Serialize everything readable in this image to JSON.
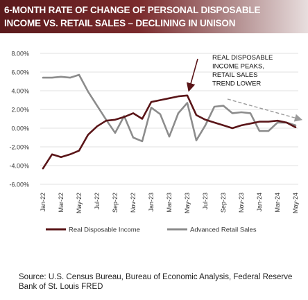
{
  "title": {
    "line1": "6-MONTH RATE OF CHANGE OF PERSONAL DISPOSABLE",
    "line2": "INCOME VS. RETAIL SALES – DECLINING IN UNISON"
  },
  "chart_data": {
    "type": "line",
    "yticks": [
      "8.00%",
      "6.00%",
      "4.00%",
      "2.00%",
      "0.00%",
      "-2.00%",
      "-4.00%",
      "-6.00%"
    ],
    "ytick_values": [
      8,
      6,
      4,
      2,
      0,
      -2,
      -4,
      -6
    ],
    "ylim": [
      -6,
      8
    ],
    "xticks": [
      "Jan-22",
      "Mar-22",
      "May-22",
      "Jul-22",
      "Sep-22",
      "Nov-22",
      "Jan-23",
      "Mar-23",
      "May-23",
      "Jul-23",
      "Sep-23",
      "Nov-23",
      "Jan-24",
      "Mar-24",
      "May-24"
    ],
    "categories": [
      "Jan-22",
      "Feb-22",
      "Mar-22",
      "Apr-22",
      "May-22",
      "Jun-22",
      "Jul-22",
      "Aug-22",
      "Sep-22",
      "Oct-22",
      "Nov-22",
      "Dec-22",
      "Jan-23",
      "Feb-23",
      "Mar-23",
      "Apr-23",
      "May-23",
      "Jun-23",
      "Jul-23",
      "Aug-23",
      "Sep-23",
      "Oct-23",
      "Nov-23",
      "Dec-23",
      "Jan-24",
      "Feb-24",
      "Mar-24",
      "Apr-24",
      "May-24"
    ],
    "series": [
      {
        "name": "Real Disposable Income",
        "color": "#5a1518",
        "values": [
          -4.3,
          -2.8,
          -3.1,
          -2.8,
          -2.4,
          -0.7,
          0.2,
          0.8,
          0.9,
          1.2,
          1.6,
          1.0,
          2.8,
          3.0,
          3.2,
          3.4,
          3.5,
          1.4,
          0.9,
          0.6,
          0.3,
          0.0,
          0.3,
          0.5,
          0.7,
          0.7,
          0.8,
          0.6,
          0.1
        ]
      },
      {
        "name": "Advanced Retail Sales",
        "color": "#8c8c8c",
        "values": [
          5.4,
          5.4,
          5.5,
          5.4,
          5.7,
          3.9,
          2.4,
          0.9,
          -0.5,
          1.3,
          -1.0,
          -1.4,
          2.2,
          1.5,
          -0.9,
          1.6,
          2.7,
          -1.3,
          0.3,
          2.3,
          2.4,
          1.6,
          1.7,
          1.6,
          -0.3,
          -0.3,
          0.6,
          0.6,
          0.3
        ]
      }
    ],
    "annotation": {
      "lines": [
        "REAL DISPOSABLE",
        "INCOME PEAKS,",
        "RETAIL SALES",
        "TREND LOWER"
      ]
    },
    "legend_position": "bottom"
  },
  "source": "Source: U.S. Census Bureau, Bureau of Economic Analysis, Federal Reserve Bank of St. Louis FRED",
  "colors": {
    "title_bg": "#6b2224",
    "income_line": "#5a1518",
    "retail_line": "#8c8c8c",
    "trend_arrow": "#a0a0a0"
  }
}
